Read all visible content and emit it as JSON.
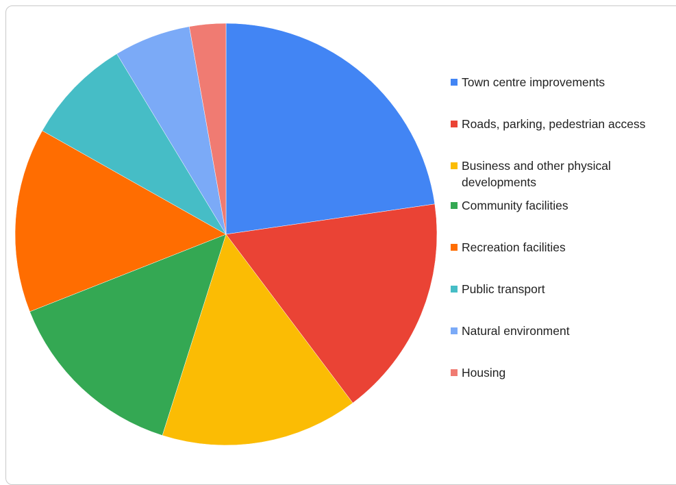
{
  "chart_data": {
    "type": "pie",
    "title": "",
    "legend_position": "right",
    "slices": [
      {
        "label": "Town centre improvements",
        "value": 22.8,
        "color": "#4285f4"
      },
      {
        "label": "Roads, parking, pedestrian access",
        "value": 17.1,
        "color": "#ea4335"
      },
      {
        "label": "Business and other physical developments",
        "value": 15.2,
        "color": "#fbbc04"
      },
      {
        "label": "Community facilities",
        "value": 14.2,
        "color": "#34a853"
      },
      {
        "label": "Recreation facilities",
        "value": 14.2,
        "color": "#ff6d01"
      },
      {
        "label": "Public transport",
        "value": 8.2,
        "color": "#46bdc6"
      },
      {
        "label": "Natural environment",
        "value": 5.9,
        "color": "#7baaf7"
      },
      {
        "label": "Housing",
        "value": 2.8,
        "color": "#f07b72"
      }
    ]
  }
}
